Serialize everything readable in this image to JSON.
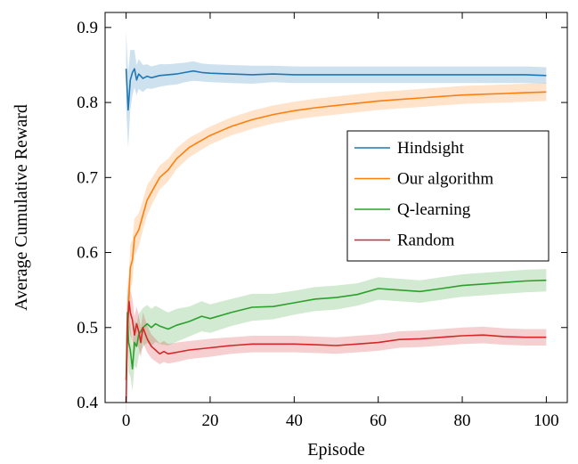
{
  "chart_data": {
    "type": "line",
    "xlabel": "Episode",
    "ylabel": "Average Cumulative Reward",
    "xlim": [
      -5,
      105
    ],
    "ylim": [
      0.4,
      0.92
    ],
    "xticks": [
      0,
      20,
      40,
      60,
      80,
      100
    ],
    "xtick_labels": [
      "0",
      "20",
      "40",
      "60",
      "80",
      "100"
    ],
    "yticks": [
      0.4,
      0.5,
      0.6,
      0.7,
      0.8,
      0.9
    ],
    "ytick_labels": [
      "0.4",
      "0.5",
      "0.6",
      "0.7",
      "0.8",
      "0.9"
    ],
    "grid": false,
    "legend_position": "center-right",
    "series": [
      {
        "name": "Hindsight",
        "color": "#1f77b4",
        "x": [
          0,
          0.5,
          1,
          1.5,
          2,
          2.5,
          3,
          4,
          5,
          6,
          8,
          10,
          12,
          14,
          16,
          18,
          20,
          25,
          30,
          35,
          40,
          45,
          50,
          55,
          60,
          65,
          70,
          75,
          80,
          85,
          90,
          95,
          100
        ],
        "y": [
          0.845,
          0.79,
          0.83,
          0.84,
          0.845,
          0.83,
          0.838,
          0.832,
          0.835,
          0.833,
          0.836,
          0.837,
          0.838,
          0.84,
          0.842,
          0.84,
          0.839,
          0.838,
          0.837,
          0.838,
          0.837,
          0.837,
          0.837,
          0.837,
          0.837,
          0.837,
          0.837,
          0.837,
          0.837,
          0.837,
          0.837,
          0.837,
          0.836
        ],
        "band": [
          0.05,
          0.05,
          0.04,
          0.03,
          0.025,
          0.02,
          0.02,
          0.018,
          0.016,
          0.015,
          0.015,
          0.014,
          0.014,
          0.013,
          0.013,
          0.012,
          0.012,
          0.012,
          0.012,
          0.011,
          0.011,
          0.011,
          0.011,
          0.011,
          0.011,
          0.011,
          0.011,
          0.011,
          0.011,
          0.011,
          0.011,
          0.011,
          0.011
        ]
      },
      {
        "name": "Our algorithm",
        "color": "#ff7f0e",
        "x": [
          0,
          0.5,
          1,
          1.5,
          2,
          3,
          4,
          5,
          6,
          8,
          10,
          12,
          15,
          20,
          25,
          30,
          35,
          40,
          45,
          50,
          55,
          60,
          65,
          70,
          75,
          80,
          85,
          90,
          95,
          100
        ],
        "y": [
          0.43,
          0.52,
          0.58,
          0.59,
          0.62,
          0.63,
          0.65,
          0.67,
          0.68,
          0.7,
          0.71,
          0.725,
          0.74,
          0.756,
          0.768,
          0.777,
          0.784,
          0.789,
          0.793,
          0.796,
          0.799,
          0.802,
          0.804,
          0.806,
          0.808,
          0.81,
          0.811,
          0.812,
          0.813,
          0.814
        ],
        "band": [
          0.03,
          0.03,
          0.03,
          0.028,
          0.025,
          0.022,
          0.02,
          0.02,
          0.018,
          0.016,
          0.015,
          0.014,
          0.013,
          0.012,
          0.012,
          0.012,
          0.012,
          0.012,
          0.012,
          0.012,
          0.012,
          0.012,
          0.012,
          0.012,
          0.012,
          0.012,
          0.012,
          0.012,
          0.012,
          0.012
        ]
      },
      {
        "name": "Q-learning",
        "color": "#2ca02c",
        "x": [
          0,
          0.3,
          0.6,
          1,
          1.5,
          2,
          2.5,
          3,
          4,
          5,
          6,
          7,
          8,
          10,
          12,
          15,
          18,
          20,
          25,
          30,
          35,
          40,
          45,
          50,
          55,
          60,
          65,
          70,
          75,
          80,
          85,
          90,
          95,
          100
        ],
        "y": [
          0.43,
          0.52,
          0.48,
          0.47,
          0.445,
          0.48,
          0.475,
          0.49,
          0.5,
          0.505,
          0.5,
          0.505,
          0.502,
          0.498,
          0.503,
          0.508,
          0.515,
          0.512,
          0.52,
          0.527,
          0.528,
          0.533,
          0.538,
          0.54,
          0.544,
          0.552,
          0.55,
          0.548,
          0.552,
          0.556,
          0.558,
          0.56,
          0.562,
          0.563
        ],
        "band": [
          0.05,
          0.05,
          0.04,
          0.035,
          0.03,
          0.03,
          0.03,
          0.028,
          0.026,
          0.025,
          0.025,
          0.024,
          0.024,
          0.022,
          0.022,
          0.02,
          0.02,
          0.019,
          0.018,
          0.018,
          0.017,
          0.016,
          0.016,
          0.016,
          0.015,
          0.015,
          0.015,
          0.015,
          0.015,
          0.015,
          0.015,
          0.015,
          0.015,
          0.015
        ]
      },
      {
        "name": "Random",
        "color": "#d62728",
        "x": [
          0,
          0.3,
          0.7,
          1,
          1.5,
          2,
          2.5,
          3,
          3.5,
          4,
          5,
          6,
          7,
          8,
          9,
          10,
          12,
          15,
          20,
          25,
          30,
          35,
          40,
          45,
          50,
          55,
          60,
          65,
          70,
          75,
          80,
          85,
          90,
          95,
          100
        ],
        "y": [
          0.4,
          0.5,
          0.535,
          0.52,
          0.51,
          0.49,
          0.505,
          0.495,
          0.48,
          0.5,
          0.485,
          0.475,
          0.47,
          0.465,
          0.468,
          0.465,
          0.467,
          0.47,
          0.473,
          0.476,
          0.478,
          0.478,
          0.478,
          0.477,
          0.476,
          0.478,
          0.48,
          0.484,
          0.485,
          0.487,
          0.489,
          0.49,
          0.488,
          0.487,
          0.487
        ],
        "band": [
          0.04,
          0.04,
          0.035,
          0.03,
          0.028,
          0.025,
          0.023,
          0.022,
          0.02,
          0.02,
          0.018,
          0.016,
          0.015,
          0.014,
          0.014,
          0.013,
          0.013,
          0.012,
          0.012,
          0.011,
          0.011,
          0.011,
          0.011,
          0.011,
          0.011,
          0.011,
          0.011,
          0.011,
          0.011,
          0.011,
          0.011,
          0.011,
          0.011,
          0.011,
          0.011
        ]
      }
    ]
  }
}
